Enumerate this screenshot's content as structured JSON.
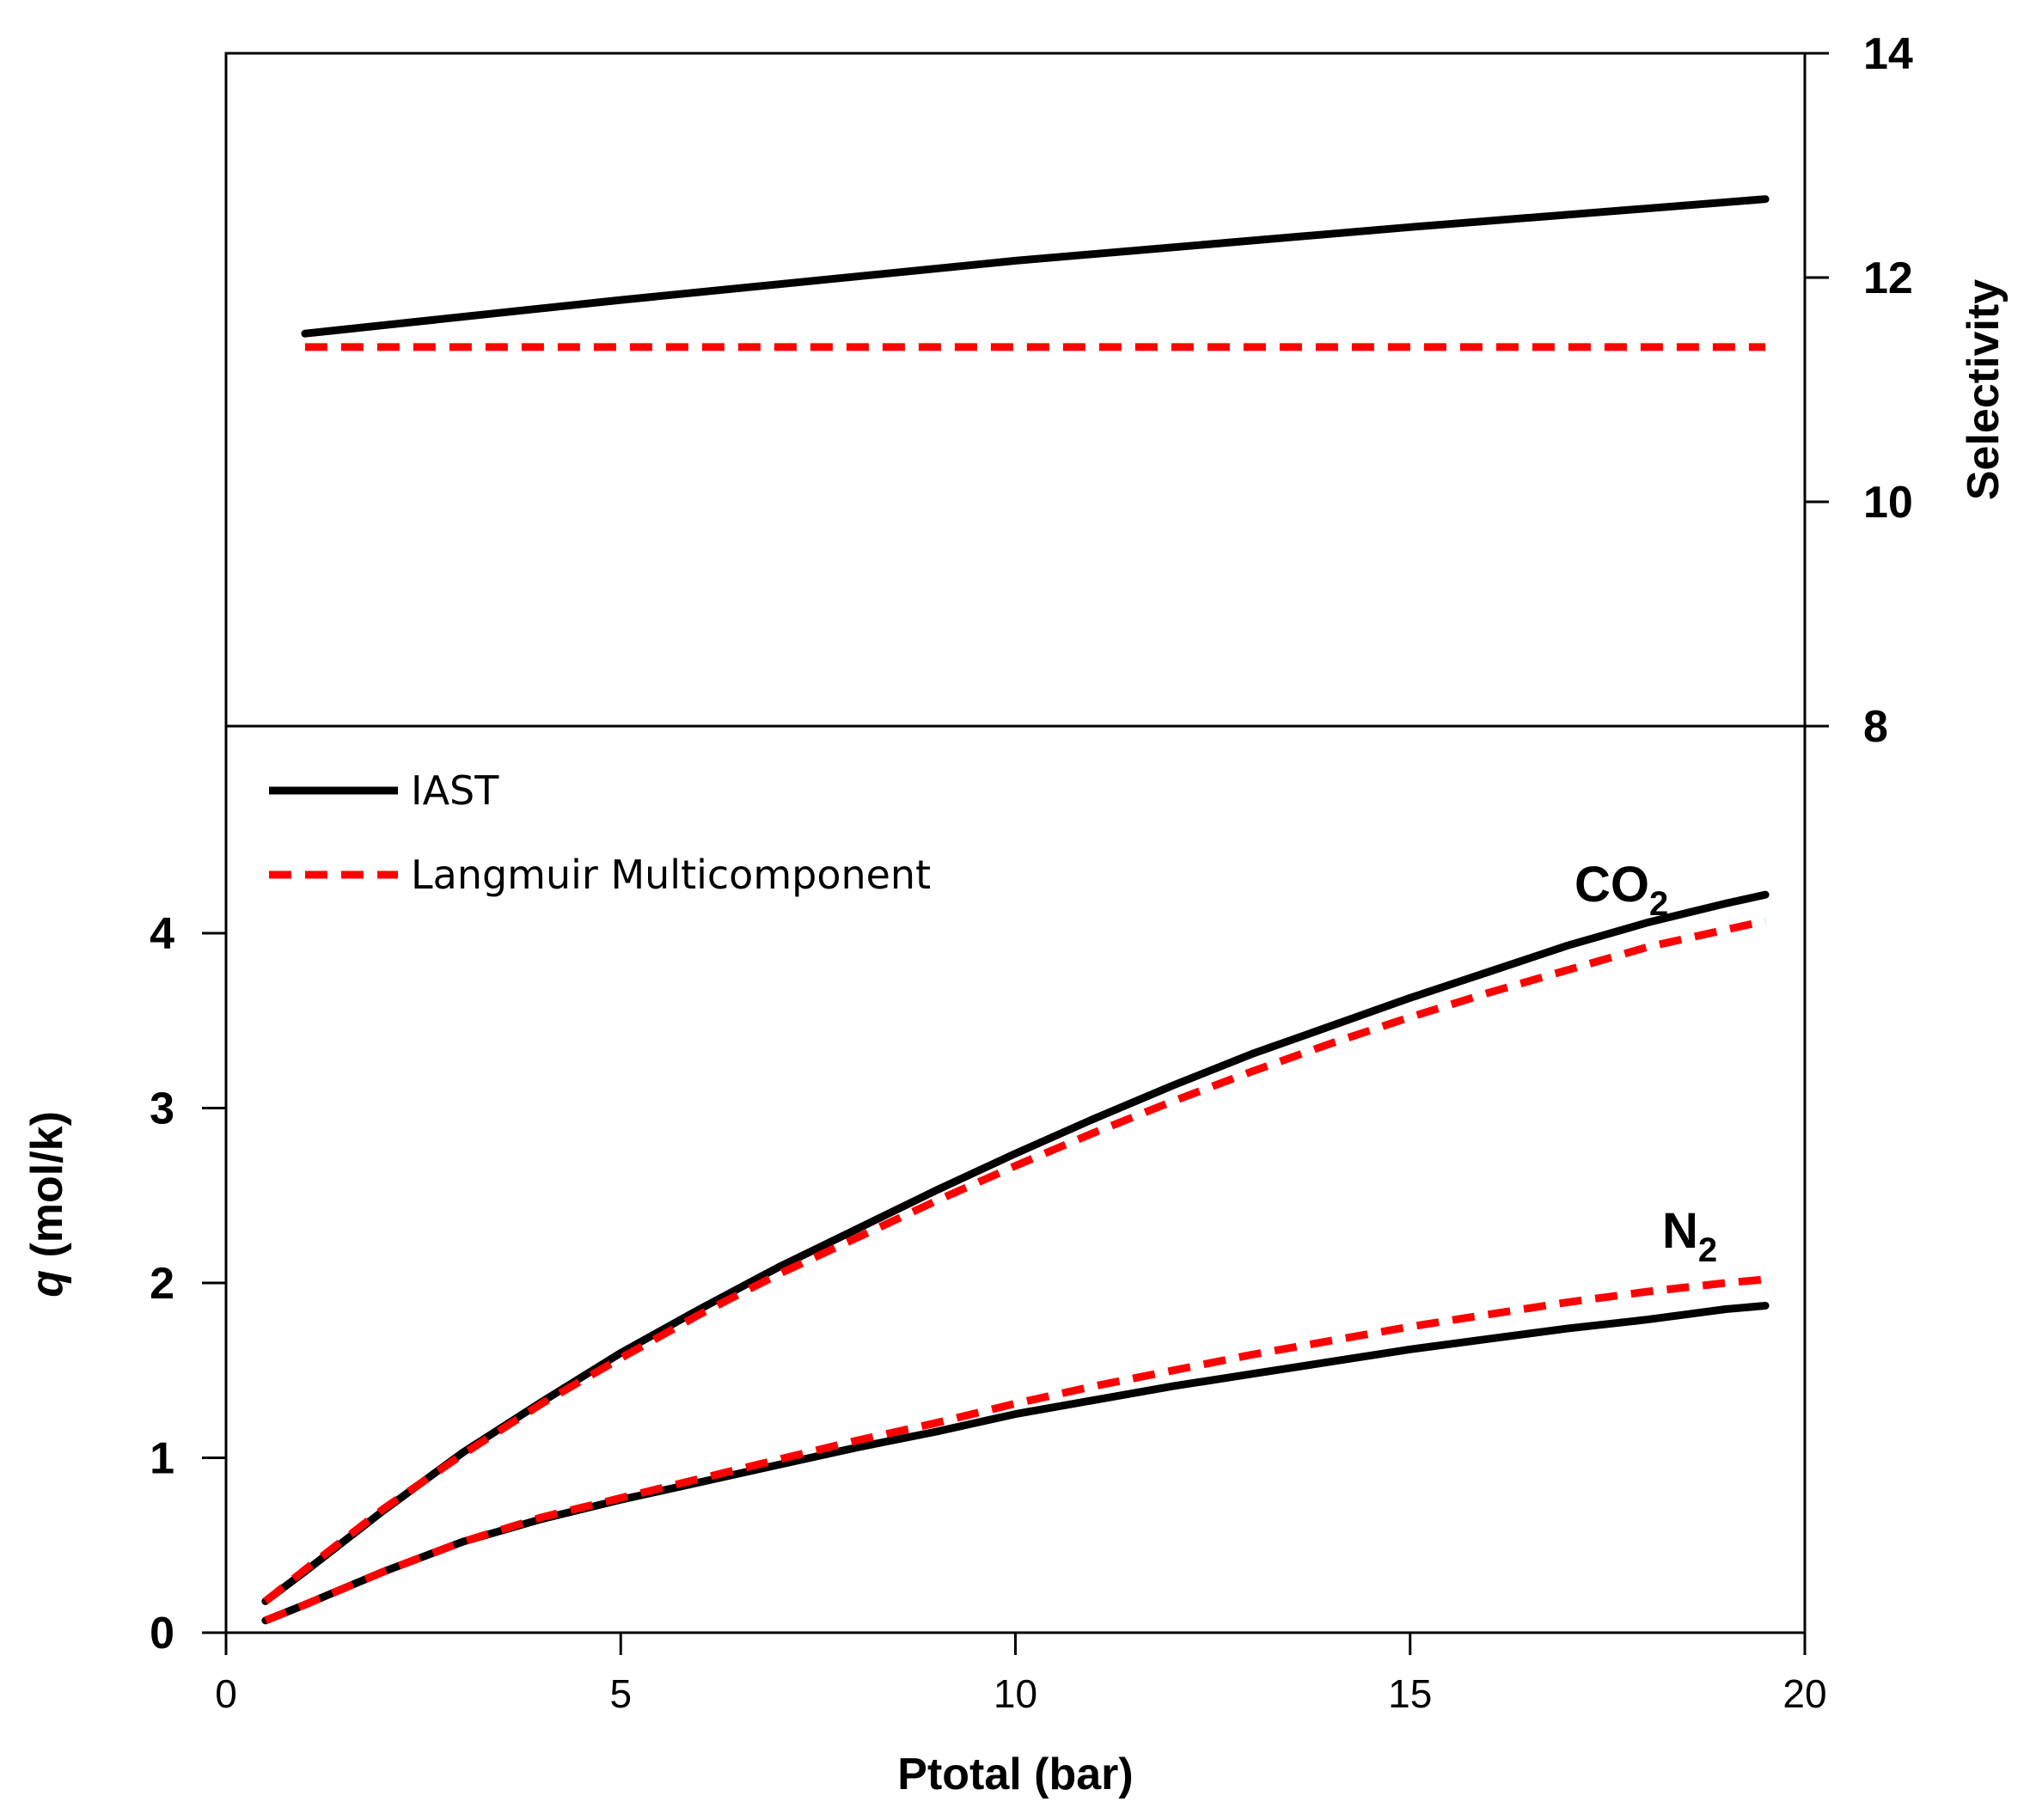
{
  "chart_data": [
    {
      "type": "line",
      "panel": "top",
      "ylabel": "Selectivity",
      "ylim": [
        8,
        14
      ],
      "yticks": [
        8,
        10,
        12,
        14
      ],
      "xlim": [
        0,
        20
      ],
      "series": [
        {
          "name": "IAST",
          "style": "solid",
          "color": "#000000",
          "x": [
            1,
            5,
            10,
            15,
            19.5
          ],
          "y": [
            11.5,
            11.8,
            12.15,
            12.45,
            12.7
          ]
        },
        {
          "name": "Langmuir Multicomponent",
          "style": "dashed",
          "color": "#ff0000",
          "x": [
            1,
            19.5
          ],
          "y": [
            11.38,
            11.38
          ]
        }
      ]
    },
    {
      "type": "line",
      "panel": "bottom",
      "xlabel": "Ptotal (bar)",
      "ylabel_italic": "q",
      "ylabel_rest": " (mol/k)",
      "xlim": [
        0,
        20
      ],
      "ylim": [
        0,
        5
      ],
      "xticks": [
        0,
        5,
        10,
        15,
        20
      ],
      "yticks": [
        0,
        1,
        2,
        3,
        4
      ],
      "legend": [
        {
          "label": "IAST",
          "style": "solid",
          "color": "#000000"
        },
        {
          "label": "Langmuir Multicomponent",
          "style": "dashed",
          "color": "#ff0000"
        }
      ],
      "annotations": [
        {
          "main": "CO",
          "sub": "2",
          "x": 17.6,
          "y": 4.28
        },
        {
          "main": "N",
          "sub": "2",
          "x": 18.6,
          "y": 2.3
        }
      ],
      "series": [
        {
          "name": "IAST CO2",
          "style": "solid",
          "color": "#000000",
          "x": [
            0.5,
            1,
            2,
            3,
            4,
            5,
            6,
            7,
            8,
            9,
            10,
            11,
            12,
            13,
            14,
            15,
            16,
            17,
            18,
            19,
            19.5
          ],
          "y": [
            0.18,
            0.35,
            0.7,
            1.03,
            1.32,
            1.6,
            1.85,
            2.09,
            2.31,
            2.53,
            2.74,
            2.94,
            3.13,
            3.31,
            3.47,
            3.63,
            3.78,
            3.93,
            4.06,
            4.17,
            4.22
          ]
        },
        {
          "name": "Langmuir CO2",
          "style": "dashed",
          "color": "#ff0000",
          "x": [
            0.5,
            1,
            2,
            3,
            4,
            5,
            6,
            7,
            8,
            9,
            10,
            11,
            12,
            13,
            14,
            15,
            16,
            17,
            18,
            19,
            19.5
          ],
          "y": [
            0.18,
            0.36,
            0.71,
            1.02,
            1.31,
            1.57,
            1.82,
            2.05,
            2.26,
            2.47,
            2.67,
            2.86,
            3.04,
            3.21,
            3.37,
            3.52,
            3.66,
            3.79,
            3.92,
            4.02,
            4.07
          ]
        },
        {
          "name": "IAST N2",
          "style": "solid",
          "color": "#000000",
          "x": [
            0.5,
            1,
            2,
            3,
            4,
            5,
            6,
            7,
            8,
            9,
            10,
            11,
            12,
            13,
            14,
            15,
            16,
            17,
            18,
            19,
            19.5
          ],
          "y": [
            0.07,
            0.16,
            0.35,
            0.52,
            0.65,
            0.76,
            0.86,
            0.96,
            1.06,
            1.15,
            1.25,
            1.33,
            1.41,
            1.48,
            1.55,
            1.62,
            1.68,
            1.74,
            1.79,
            1.85,
            1.87
          ]
        },
        {
          "name": "Langmuir N2",
          "style": "dashed",
          "color": "#ff0000",
          "x": [
            0.5,
            1,
            2,
            3,
            4,
            5,
            6,
            7,
            8,
            9,
            10,
            11,
            12,
            13,
            14,
            15,
            16,
            17,
            18,
            19,
            19.5
          ],
          "y": [
            0.07,
            0.16,
            0.35,
            0.52,
            0.66,
            0.77,
            0.88,
            0.99,
            1.1,
            1.2,
            1.31,
            1.41,
            1.5,
            1.59,
            1.67,
            1.75,
            1.82,
            1.89,
            1.95,
            2.0,
            2.02
          ]
        }
      ]
    }
  ]
}
